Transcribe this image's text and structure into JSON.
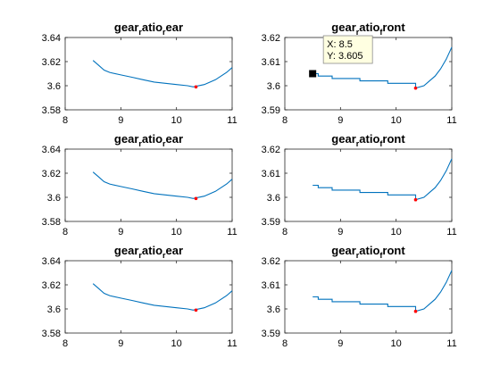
{
  "chart_data": [
    {
      "type": "line",
      "title": "gear_ratio_rear",
      "title_base": "gear",
      "title_parts": [
        "r",
        "atio",
        "r",
        "ear"
      ],
      "xlim": [
        8,
        11
      ],
      "ylim": [
        3.58,
        3.64
      ],
      "xticks": [
        "8",
        "9",
        "10",
        "11"
      ],
      "yticks": [
        "3.58",
        "3.6",
        "3.62",
        "3.64"
      ],
      "series": [
        {
          "color": "#0072BD",
          "x": [
            8.5,
            8.6,
            8.7,
            8.8,
            9.0,
            9.2,
            9.4,
            9.6,
            9.8,
            10.0,
            10.2,
            10.3,
            10.5,
            10.7,
            10.9,
            11.0
          ],
          "y": [
            3.621,
            3.617,
            3.613,
            3.611,
            3.609,
            3.607,
            3.605,
            3.603,
            3.602,
            3.601,
            3.6,
            3.599,
            3.601,
            3.605,
            3.611,
            3.615
          ]
        }
      ],
      "highlight": {
        "x": 10.35,
        "y": 3.599,
        "color": "#FF0000"
      }
    },
    {
      "type": "line",
      "title": "gear_ratio_front",
      "title_base": "gear",
      "title_parts": [
        "r",
        "atio",
        "f",
        "ront"
      ],
      "xlim": [
        8,
        11
      ],
      "ylim": [
        3.59,
        3.62
      ],
      "xticks": [
        "8",
        "9",
        "10",
        "11"
      ],
      "yticks": [
        "3.59",
        "3.6",
        "3.61",
        "3.62"
      ],
      "series": [
        {
          "color": "#0072BD",
          "x": [
            8.5,
            8.6,
            8.6,
            8.85,
            8.85,
            9.35,
            9.35,
            9.85,
            9.85,
            10.35,
            10.35,
            10.5,
            10.6,
            10.7,
            10.8,
            10.9,
            11.0
          ],
          "y": [
            3.605,
            3.605,
            3.604,
            3.604,
            3.603,
            3.603,
            3.602,
            3.602,
            3.601,
            3.601,
            3.599,
            3.6,
            3.602,
            3.604,
            3.607,
            3.611,
            3.616
          ]
        }
      ],
      "highlight": {
        "x": 10.35,
        "y": 3.599,
        "color": "#FF0000"
      },
      "datatip": {
        "x": 8.5,
        "y": 3.605,
        "x_label": "X: 8.5",
        "y_label": "Y: 3.605"
      }
    },
    {
      "type": "line",
      "title": "gear_ratio_rear",
      "title_base": "gear",
      "title_parts": [
        "r",
        "atio",
        "r",
        "ear"
      ],
      "xlim": [
        8,
        11
      ],
      "ylim": [
        3.58,
        3.64
      ],
      "xticks": [
        "8",
        "9",
        "10",
        "11"
      ],
      "yticks": [
        "3.58",
        "3.6",
        "3.62",
        "3.64"
      ],
      "series": [
        {
          "color": "#0072BD",
          "x": [
            8.5,
            8.6,
            8.7,
            8.8,
            9.0,
            9.2,
            9.4,
            9.6,
            9.8,
            10.0,
            10.2,
            10.3,
            10.5,
            10.7,
            10.9,
            11.0
          ],
          "y": [
            3.621,
            3.617,
            3.613,
            3.611,
            3.609,
            3.607,
            3.605,
            3.603,
            3.602,
            3.601,
            3.6,
            3.599,
            3.601,
            3.605,
            3.611,
            3.615
          ]
        }
      ],
      "highlight": {
        "x": 10.35,
        "y": 3.599,
        "color": "#FF0000"
      }
    },
    {
      "type": "line",
      "title": "gear_ratio_front",
      "title_base": "gear",
      "title_parts": [
        "r",
        "atio",
        "f",
        "ront"
      ],
      "xlim": [
        8,
        11
      ],
      "ylim": [
        3.59,
        3.62
      ],
      "xticks": [
        "8",
        "9",
        "10",
        "11"
      ],
      "yticks": [
        "3.59",
        "3.6",
        "3.61",
        "3.62"
      ],
      "series": [
        {
          "color": "#0072BD",
          "x": [
            8.5,
            8.6,
            8.6,
            8.85,
            8.85,
            9.35,
            9.35,
            9.85,
            9.85,
            10.35,
            10.35,
            10.5,
            10.6,
            10.7,
            10.8,
            10.9,
            11.0
          ],
          "y": [
            3.605,
            3.605,
            3.604,
            3.604,
            3.603,
            3.603,
            3.602,
            3.602,
            3.601,
            3.601,
            3.599,
            3.6,
            3.602,
            3.604,
            3.607,
            3.611,
            3.616
          ]
        }
      ],
      "highlight": {
        "x": 10.35,
        "y": 3.599,
        "color": "#FF0000"
      }
    },
    {
      "type": "line",
      "title": "gear_ratio_rear",
      "title_base": "gear",
      "title_parts": [
        "r",
        "atio",
        "r",
        "ear"
      ],
      "xlim": [
        8,
        11
      ],
      "ylim": [
        3.58,
        3.64
      ],
      "xticks": [
        "8",
        "9",
        "10",
        "11"
      ],
      "yticks": [
        "3.58",
        "3.6",
        "3.62",
        "3.64"
      ],
      "series": [
        {
          "color": "#0072BD",
          "x": [
            8.5,
            8.6,
            8.7,
            8.8,
            9.0,
            9.2,
            9.4,
            9.6,
            9.8,
            10.0,
            10.2,
            10.3,
            10.5,
            10.7,
            10.9,
            11.0
          ],
          "y": [
            3.621,
            3.617,
            3.613,
            3.611,
            3.609,
            3.607,
            3.605,
            3.603,
            3.602,
            3.601,
            3.6,
            3.599,
            3.601,
            3.605,
            3.611,
            3.615
          ]
        }
      ],
      "highlight": {
        "x": 10.35,
        "y": 3.599,
        "color": "#FF0000"
      }
    },
    {
      "type": "line",
      "title": "gear_ratio_front",
      "title_base": "gear",
      "title_parts": [
        "r",
        "atio",
        "f",
        "ront"
      ],
      "xlim": [
        8,
        11
      ],
      "ylim": [
        3.59,
        3.62
      ],
      "xticks": [
        "8",
        "9",
        "10",
        "11"
      ],
      "yticks": [
        "3.59",
        "3.6",
        "3.61",
        "3.62"
      ],
      "series": [
        {
          "color": "#0072BD",
          "x": [
            8.5,
            8.6,
            8.6,
            8.85,
            8.85,
            9.35,
            9.35,
            9.85,
            9.85,
            10.35,
            10.35,
            10.5,
            10.6,
            10.7,
            10.8,
            10.9,
            11.0
          ],
          "y": [
            3.605,
            3.605,
            3.604,
            3.604,
            3.603,
            3.603,
            3.602,
            3.602,
            3.601,
            3.601,
            3.599,
            3.6,
            3.602,
            3.604,
            3.607,
            3.611,
            3.616
          ]
        }
      ],
      "highlight": {
        "x": 10.35,
        "y": 3.599,
        "color": "#FF0000"
      }
    }
  ]
}
